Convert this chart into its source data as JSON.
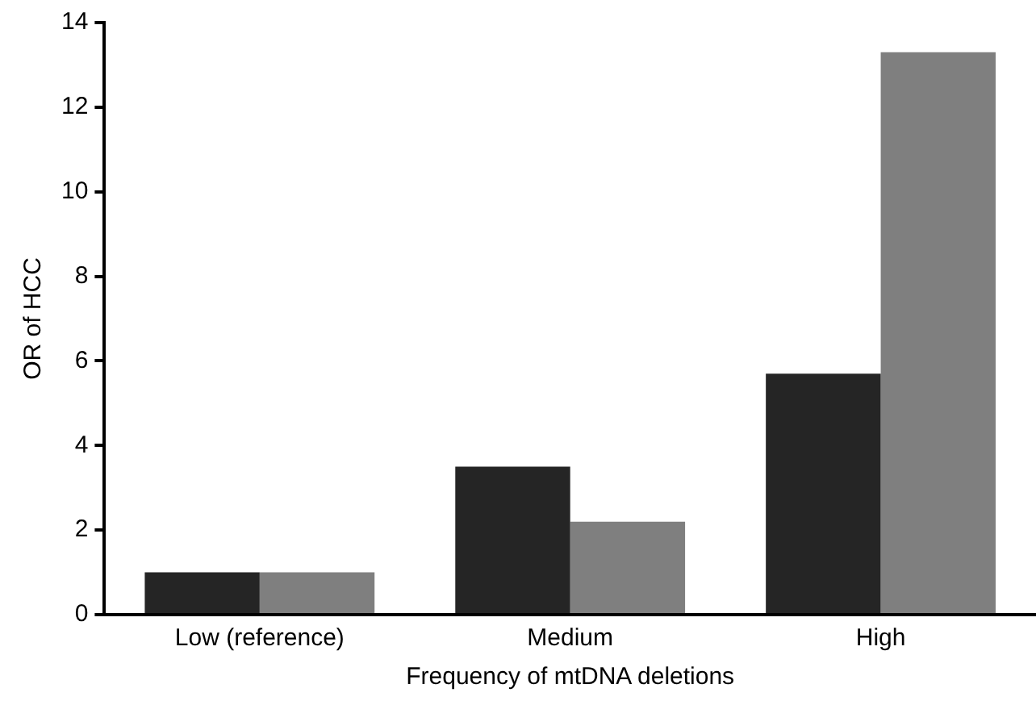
{
  "chart_data": {
    "type": "bar",
    "xlabel": "Frequency of mtDNA deletions",
    "ylabel": "OR of HCC",
    "categories": [
      "Low (reference)",
      "Medium",
      "High"
    ],
    "series": [
      {
        "color": "#252525",
        "values": [
          1.0,
          3.5,
          5.7
        ]
      },
      {
        "color": "#7f7f7f",
        "values": [
          1.0,
          2.2,
          13.3
        ]
      }
    ],
    "ylim": [
      0,
      14
    ],
    "yticks": [
      0,
      2,
      4,
      6,
      8,
      10,
      12,
      14
    ],
    "grid": false,
    "legend": false
  }
}
